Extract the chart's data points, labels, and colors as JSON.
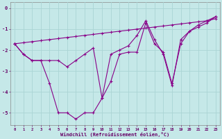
{
  "xlabel": "Windchill (Refroidissement éolien,°C)",
  "bg_color": "#c5e8e8",
  "line_color": "#880088",
  "grid_color": "#aad4d4",
  "xlim": [
    -0.5,
    23.5
  ],
  "ylim": [
    -5.6,
    0.3
  ],
  "yticks": [
    0,
    -1,
    -2,
    -3,
    -4,
    -5
  ],
  "xtick_labels": [
    "0",
    "1",
    "2",
    "3",
    "4",
    "5",
    "6",
    "7",
    "8",
    "9",
    "10",
    "11",
    "12",
    "13",
    "14",
    "15",
    "16",
    "17",
    "18",
    "19",
    "20",
    "21",
    "22",
    "23"
  ],
  "line1_x": [
    0,
    1,
    2,
    3,
    4,
    5,
    6,
    7,
    8,
    9,
    10,
    11,
    12,
    13,
    14,
    15,
    16,
    17,
    18,
    19,
    20,
    21,
    22,
    23
  ],
  "line1_y": [
    -1.7,
    -2.2,
    -2.5,
    -2.5,
    -3.6,
    -5.0,
    -5.0,
    -5.3,
    -5.0,
    -5.0,
    -4.3,
    -3.5,
    -2.2,
    -2.1,
    -2.1,
    -0.7,
    -1.7,
    -2.1,
    -3.6,
    -1.7,
    -1.1,
    -0.8,
    -0.6,
    -0.4
  ],
  "line2_x": [
    0,
    1,
    2,
    3,
    4,
    5,
    6,
    7,
    8,
    9,
    10,
    11,
    12,
    13,
    14,
    15,
    16,
    17,
    18,
    19,
    20,
    21,
    22,
    23
  ],
  "line2_y": [
    -1.7,
    -1.65,
    -1.6,
    -1.55,
    -1.5,
    -1.45,
    -1.4,
    -1.35,
    -1.3,
    -1.25,
    -1.2,
    -1.15,
    -1.1,
    -1.05,
    -1.0,
    -0.95,
    -0.9,
    -0.85,
    -0.8,
    -0.75,
    -0.7,
    -0.65,
    -0.6,
    -0.5
  ],
  "line3_x": [
    0,
    1,
    2,
    3,
    4,
    5,
    6,
    7,
    8,
    9,
    10,
    11,
    12,
    13,
    14,
    15,
    16,
    17,
    18,
    19,
    20,
    21,
    22,
    23
  ],
  "line3_y": [
    -1.7,
    -2.2,
    -2.5,
    -2.5,
    -2.5,
    -2.5,
    -2.8,
    -2.5,
    -2.2,
    -1.9,
    -4.3,
    -2.2,
    -2.0,
    -1.8,
    -1.3,
    -0.6,
    -1.5,
    -2.2,
    -3.7,
    -1.5,
    -1.1,
    -0.9,
    -0.7,
    -0.4
  ]
}
